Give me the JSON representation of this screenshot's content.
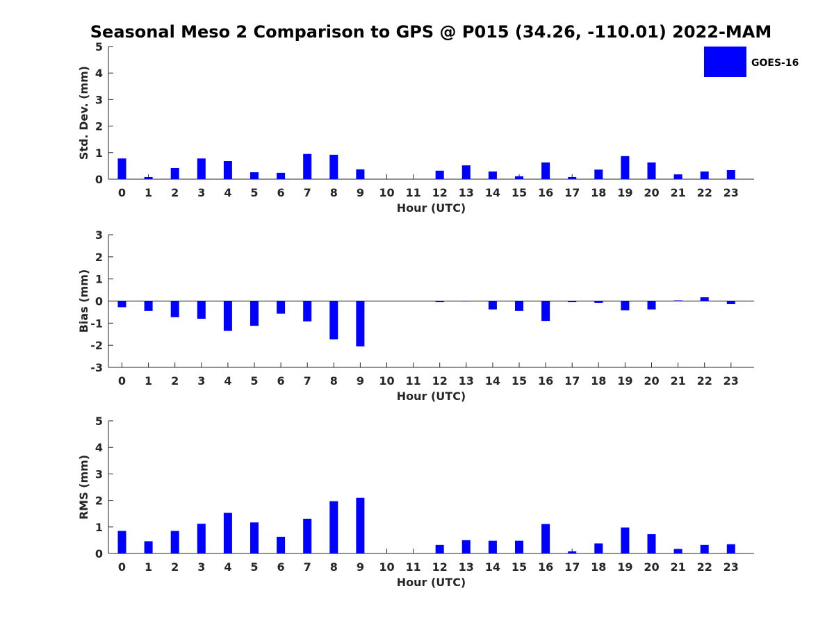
{
  "chart_data": {
    "type": "bar",
    "title": "Seasonal Meso 2 Comparison to GPS @ P015 (34.26, -110.01) 2022-MAM",
    "legend": {
      "label": "GOES-16",
      "placement": "top-right"
    },
    "colors": {
      "bar": "#0000ff",
      "axis": "#262626"
    },
    "categories": [
      "0",
      "1",
      "2",
      "3",
      "4",
      "5",
      "6",
      "7",
      "8",
      "9",
      "10",
      "11",
      "12",
      "13",
      "14",
      "15",
      "16",
      "17",
      "18",
      "19",
      "20",
      "21",
      "22",
      "23"
    ],
    "panels": [
      {
        "ylabel": "Std. Dev. (mm)",
        "xlabel": "Hour (UTC)",
        "ylim": [
          0,
          5
        ],
        "yticks": [
          "0",
          "1",
          "2",
          "3",
          "4",
          "5"
        ],
        "series": [
          {
            "name": "GOES-16",
            "values": [
              0.78,
              0.08,
              0.42,
              0.78,
              0.68,
              0.26,
              0.24,
              0.95,
              0.92,
              0.37,
              0,
              0,
              0.32,
              0.52,
              0.29,
              0.11,
              0.63,
              0.08,
              0.36,
              0.87,
              0.63,
              0.18,
              0.29,
              0.34
            ]
          }
        ]
      },
      {
        "ylabel": "Bias (mm)",
        "xlabel": "Hour (UTC)",
        "ylim": [
          -3,
          3
        ],
        "yticks": [
          "-3",
          "-2",
          "-1",
          "0",
          "1",
          "2",
          "3"
        ],
        "series": [
          {
            "name": "GOES-16",
            "values": [
              -0.28,
              -0.45,
              -0.73,
              -0.8,
              -1.35,
              -1.12,
              -0.57,
              -0.92,
              -1.73,
              -2.05,
              0,
              0,
              -0.05,
              -0.02,
              -0.38,
              -0.45,
              -0.9,
              -0.05,
              -0.08,
              -0.42,
              -0.38,
              0.03,
              0.17,
              -0.14
            ]
          }
        ]
      },
      {
        "ylabel": "RMS (mm)",
        "xlabel": "Hour (UTC)",
        "ylim": [
          0,
          5
        ],
        "yticks": [
          "0",
          "1",
          "2",
          "3",
          "4",
          "5"
        ],
        "series": [
          {
            "name": "GOES-16",
            "values": [
              0.85,
              0.46,
              0.85,
              1.12,
              1.53,
              1.17,
              0.63,
              1.31,
              1.97,
              2.1,
              0,
              0,
              0.32,
              0.5,
              0.48,
              0.48,
              1.11,
              0.08,
              0.38,
              0.98,
              0.73,
              0.17,
              0.32,
              0.35
            ]
          }
        ]
      }
    ]
  }
}
